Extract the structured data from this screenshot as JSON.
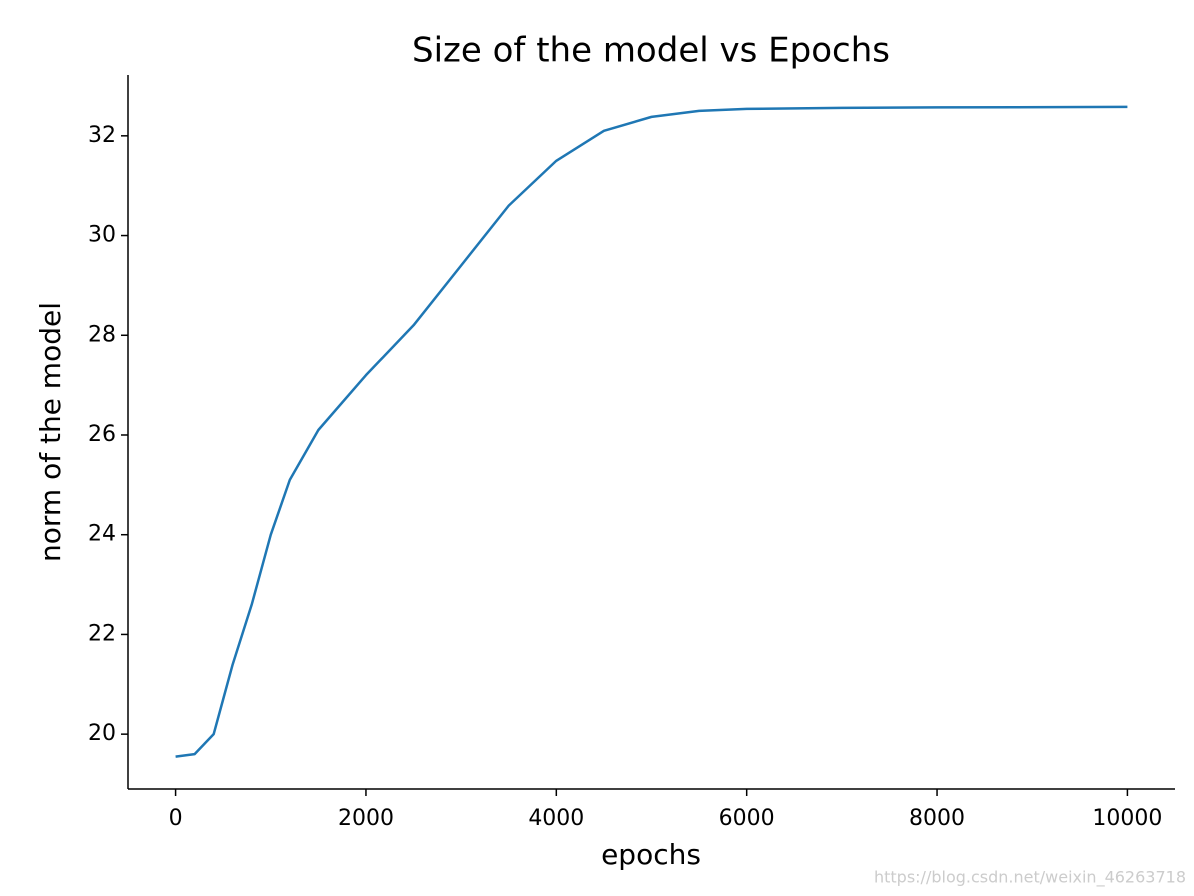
{
  "chart_data": {
    "type": "line",
    "title": "Size of the model vs Epochs",
    "x_label": "epochs",
    "y_label": "norm of the model",
    "x": [
      0,
      200,
      400,
      500,
      600,
      800,
      1000,
      1200,
      1500,
      2000,
      2500,
      3000,
      3500,
      4000,
      4500,
      5000,
      5500,
      6000,
      7000,
      8000,
      10000
    ],
    "values": [
      19.55,
      19.6,
      20.0,
      20.7,
      21.4,
      22.6,
      24.0,
      25.1,
      26.1,
      27.2,
      28.2,
      29.4,
      30.6,
      31.5,
      32.1,
      32.38,
      32.5,
      32.54,
      32.56,
      32.57,
      32.58
    ],
    "color": "#1f77b4",
    "xlim": [
      -500,
      10500
    ],
    "ylim": [
      18.9,
      33.22
    ],
    "xticks": [
      0,
      2000,
      4000,
      6000,
      8000,
      10000
    ],
    "yticks": [
      20,
      22,
      24,
      26,
      28,
      30,
      32
    ],
    "grid": false,
    "watermark": "https://blog.csdn.net/weixin_46263718"
  }
}
